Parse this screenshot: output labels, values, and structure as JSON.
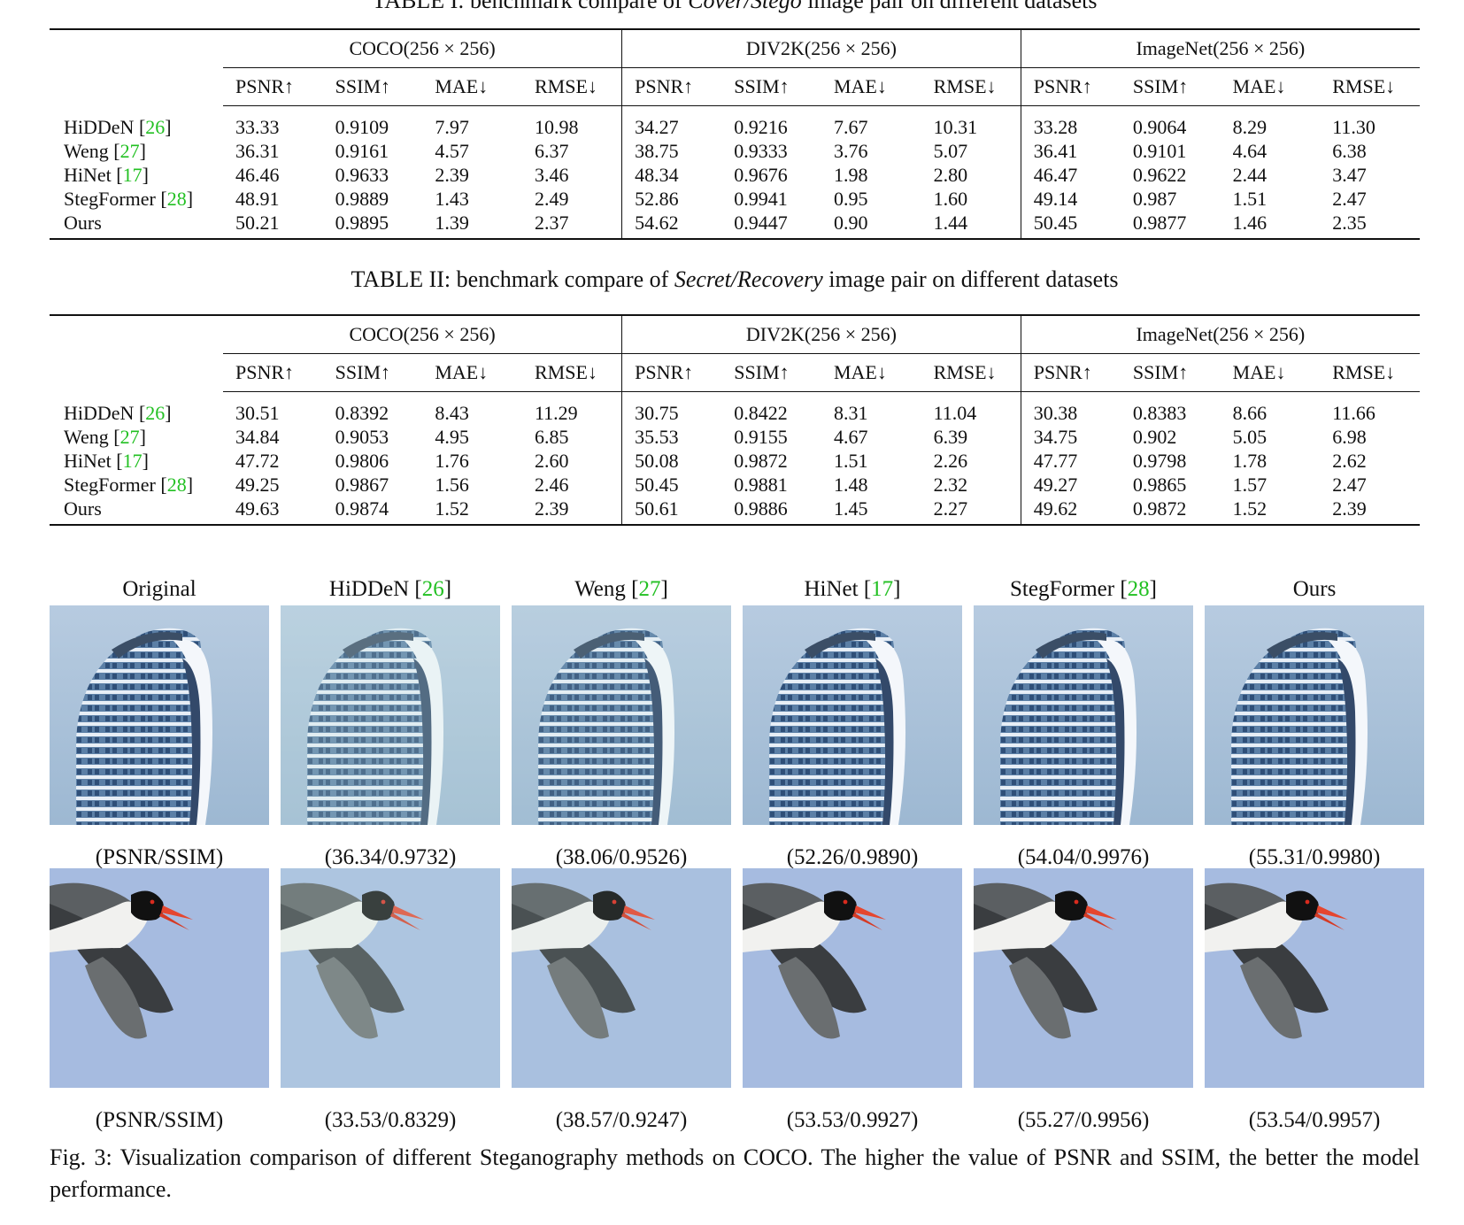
{
  "table1": {
    "caption_prefix": "TABLE I: benchmark compare of ",
    "caption_italic": "Cover/Stego",
    "caption_suffix": " image pair on different datasets",
    "groups": [
      "COCO(256 × 256)",
      "DIV2K(256 × 256)",
      "ImageNet(256 × 256)"
    ],
    "metrics": [
      "PSNR↑",
      "SSIM↑",
      "MAE↓",
      "RMSE↓"
    ],
    "rows": [
      {
        "name": "HiDDeN",
        "cite": "26",
        "values": [
          "33.33",
          "0.9109",
          "7.97",
          "10.98",
          "34.27",
          "0.9216",
          "7.67",
          "10.31",
          "33.28",
          "0.9064",
          "8.29",
          "11.30"
        ],
        "bold": []
      },
      {
        "name": "Weng",
        "cite": "27",
        "values": [
          "36.31",
          "0.9161",
          "4.57",
          "6.37",
          "38.75",
          "0.9333",
          "3.76",
          "5.07",
          "36.41",
          "0.9101",
          "4.64",
          "6.38"
        ],
        "bold": []
      },
      {
        "name": "HiNet",
        "cite": "17",
        "values": [
          "46.46",
          "0.9633",
          "2.39",
          "3.46",
          "48.34",
          "0.9676",
          "1.98",
          "2.80",
          "46.47",
          "0.9622",
          "2.44",
          "3.47"
        ],
        "bold": []
      },
      {
        "name": "StegFormer",
        "cite": "28",
        "values": [
          "48.91",
          "0.9889",
          "1.43",
          "2.49",
          "52.86",
          "0.9941",
          "0.95",
          "1.60",
          "49.14",
          "0.987",
          "1.51",
          "2.47"
        ],
        "bold": [
          5
        ]
      },
      {
        "name": "Ours",
        "cite": "",
        "values": [
          "50.21",
          "0.9895",
          "1.39",
          "2.37",
          "54.62",
          "0.9447",
          "0.90",
          "1.44",
          "50.45",
          "0.9877",
          "1.46",
          "2.35"
        ],
        "bold": [
          0,
          1,
          2,
          3,
          4,
          6,
          7,
          8,
          9,
          10,
          11
        ]
      }
    ]
  },
  "table2": {
    "caption_prefix": "TABLE II: benchmark compare of ",
    "caption_italic": "Secret/Recovery",
    "caption_suffix": " image pair on different datasets",
    "groups": [
      "COCO(256 × 256)",
      "DIV2K(256 × 256)",
      "ImageNet(256 × 256)"
    ],
    "metrics": [
      "PSNR↑",
      "SSIM↑",
      "MAE↓",
      "RMSE↓"
    ],
    "rows": [
      {
        "name": "HiDDeN",
        "cite": "26",
        "values": [
          "30.51",
          "0.8392",
          "8.43",
          "11.29",
          "30.75",
          "0.8422",
          "8.31",
          "11.04",
          "30.38",
          "0.8383",
          "8.66",
          "11.66"
        ],
        "bold": []
      },
      {
        "name": "Weng",
        "cite": "27",
        "values": [
          "34.84",
          "0.9053",
          "4.95",
          "6.85",
          "35.53",
          "0.9155",
          "4.67",
          "6.39",
          "34.75",
          "0.902",
          "5.05",
          "6.98"
        ],
        "bold": []
      },
      {
        "name": "HiNet",
        "cite": "17",
        "values": [
          "47.72",
          "0.9806",
          "1.76",
          "2.60",
          "50.08",
          "0.9872",
          "1.51",
          "2.26",
          "47.77",
          "0.9798",
          "1.78",
          "2.62"
        ],
        "bold": [
          7
        ]
      },
      {
        "name": "StegFormer",
        "cite": "28",
        "values": [
          "49.25",
          "0.9867",
          "1.56",
          "2.46",
          "50.45",
          "0.9881",
          "1.48",
          "2.32",
          "49.27",
          "0.9865",
          "1.57",
          "2.47"
        ],
        "bold": []
      },
      {
        "name": "Ours",
        "cite": "",
        "values": [
          "49.63",
          "0.9874",
          "1.52",
          "2.39",
          "50.61",
          "0.9886",
          "1.45",
          "2.27",
          "49.62",
          "0.9872",
          "1.52",
          "2.39"
        ],
        "bold": [
          0,
          1,
          2,
          3,
          4,
          5,
          6,
          8,
          9,
          10,
          11
        ]
      }
    ]
  },
  "figure": {
    "columns": [
      {
        "name": "Original",
        "cite": ""
      },
      {
        "name": "HiDDeN",
        "cite": "26"
      },
      {
        "name": "Weng",
        "cite": "27"
      },
      {
        "name": "HiNet",
        "cite": "17"
      },
      {
        "name": "StegFormer",
        "cite": "28"
      },
      {
        "name": "Ours",
        "cite": ""
      }
    ],
    "row1_scores": [
      "(PSNR/SSIM)",
      "(36.34/0.9732)",
      "(38.06/0.9526)",
      "(52.26/0.9890)",
      "(54.04/0.9976)",
      "(55.31/0.9980)"
    ],
    "row2_scores": [
      "(PSNR/SSIM)",
      "(33.53/0.8329)",
      "(38.57/0.9247)",
      "(53.53/0.9927)",
      "(55.27/0.9956)",
      "(53.54/0.9957)"
    ],
    "caption": "Fig. 3: Visualization comparison of different Steganography methods on COCO. The higher the value of PSNR and SSIM, the better the model performance."
  }
}
